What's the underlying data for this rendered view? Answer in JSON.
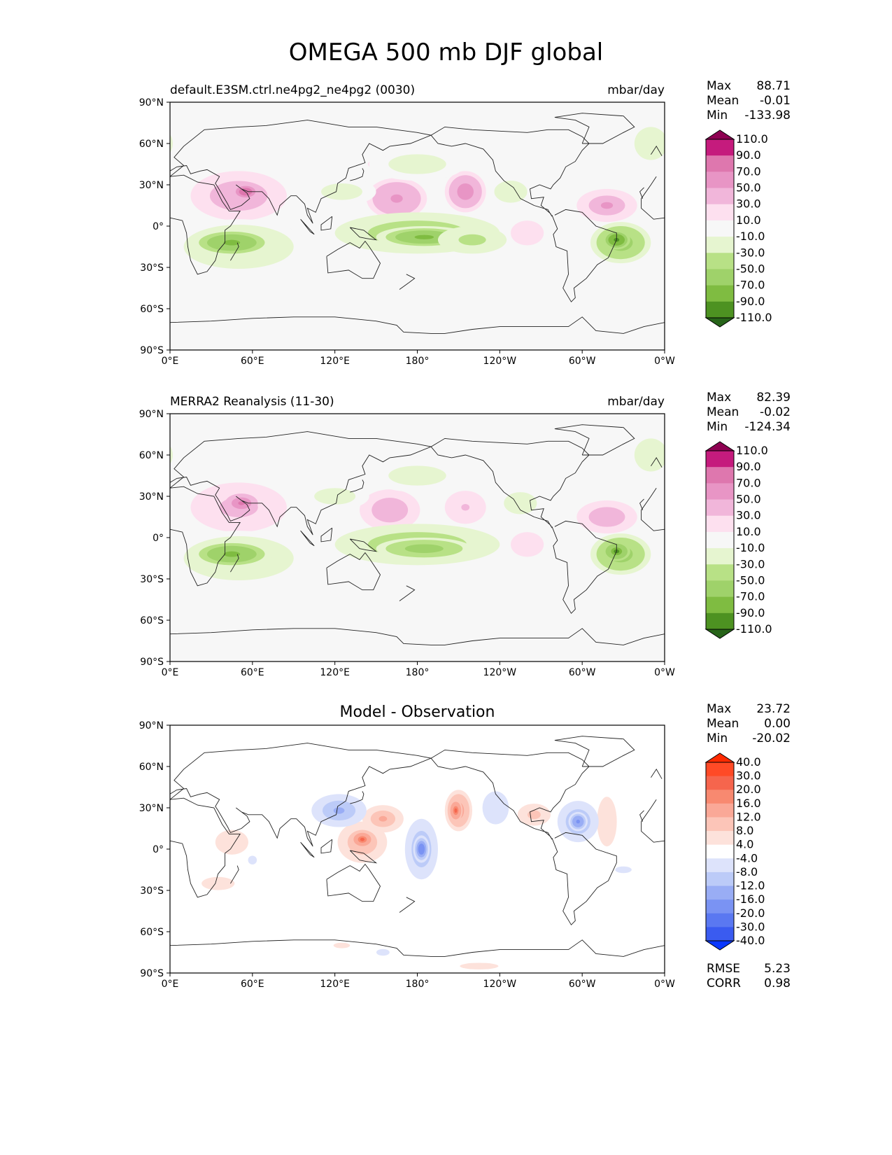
{
  "figure_title": "OMEGA 500 mb DJF global",
  "chart_data": [
    {
      "type": "contour-map",
      "left_title": "default.E3SM.ctrl.ne4pg2_ne4pg2 (0030)",
      "center_title": "",
      "right_title": "mbar/day",
      "x_ticks": [
        "0°E",
        "60°E",
        "120°E",
        "180°",
        "120°W",
        "60°W",
        "0°W"
      ],
      "y_ticks": [
        "90°N",
        "60°N",
        "30°N",
        "0°",
        "30°S",
        "60°S",
        "90°S"
      ],
      "stats": {
        "labels": [
          "Max",
          "Mean",
          "Min"
        ],
        "values": [
          "88.71",
          "-0.01",
          "-133.98"
        ]
      },
      "colorbar": {
        "labels": [
          "110.0",
          "90.0",
          "70.0",
          "50.0",
          "30.0",
          "10.0",
          "-10.0",
          "-30.0",
          "-50.0",
          "-70.0",
          "-90.0",
          "-110.0"
        ],
        "colors": [
          "#8e0152",
          "#c51b7d",
          "#de77ae",
          "#e895c5",
          "#f1b6da",
          "#fde0ef",
          "#f7f7f7",
          "#e6f5d0",
          "#b8e186",
          "#9fd26a",
          "#7fbc41",
          "#4d9221",
          "#276419"
        ]
      },
      "blobs": [
        {
          "lon": 50,
          "lat": 22,
          "rx": 35,
          "ry": 18,
          "v": 45
        },
        {
          "lon": 55,
          "lat": 25,
          "rx": 12,
          "ry": 7,
          "v": 85
        },
        {
          "lon": 165,
          "lat": 20,
          "rx": 22,
          "ry": 15,
          "v": 55
        },
        {
          "lon": 215,
          "lat": 25,
          "rx": 15,
          "ry": 15,
          "v": 60
        },
        {
          "lon": 318,
          "lat": 15,
          "rx": 22,
          "ry": 12,
          "v": 50
        },
        {
          "lon": 148,
          "lat": 45,
          "rx": 10,
          "ry": 6,
          "v": 12
        },
        {
          "lon": 260,
          "lat": -5,
          "rx": 20,
          "ry": 15,
          "v": 15
        },
        {
          "lon": 50,
          "lat": -15,
          "rx": 50,
          "ry": 20,
          "v": -25
        },
        {
          "lon": 45,
          "lat": -12,
          "rx": 30,
          "ry": 10,
          "v": -75
        },
        {
          "lon": 180,
          "lat": -5,
          "rx": 60,
          "ry": 15,
          "v": -45
        },
        {
          "lon": 185,
          "lat": -8,
          "rx": 35,
          "ry": 8,
          "v": -75
        },
        {
          "lon": 220,
          "lat": -10,
          "rx": 25,
          "ry": 10,
          "v": -40
        },
        {
          "lon": 328,
          "lat": -12,
          "rx": 22,
          "ry": 15,
          "v": -60
        },
        {
          "lon": 325,
          "lat": -10,
          "rx": 10,
          "ry": 7,
          "v": -105
        },
        {
          "lon": 180,
          "lat": 45,
          "rx": 35,
          "ry": 12,
          "v": -15
        },
        {
          "lon": 125,
          "lat": 25,
          "rx": 25,
          "ry": 10,
          "v": -18
        },
        {
          "lon": 248,
          "lat": 25,
          "rx": 15,
          "ry": 10,
          "v": -20
        },
        {
          "lon": 350,
          "lat": 60,
          "rx": 20,
          "ry": 20,
          "v": -18
        }
      ]
    },
    {
      "type": "contour-map",
      "left_title": "MERRA2 Reanalysis (11-30)",
      "center_title": "",
      "right_title": "mbar/day",
      "x_ticks": [
        "0°E",
        "60°E",
        "120°E",
        "180°",
        "120°W",
        "60°W",
        "0°W"
      ],
      "y_ticks": [
        "90°N",
        "60°N",
        "30°N",
        "0°",
        "30°S",
        "60°S",
        "90°S"
      ],
      "stats": {
        "labels": [
          "Max",
          "Mean",
          "Min"
        ],
        "values": [
          "82.39",
          "-0.02",
          "-124.34"
        ]
      },
      "colorbar": {
        "labels": [
          "110.0",
          "90.0",
          "70.0",
          "50.0",
          "30.0",
          "10.0",
          "-10.0",
          "-30.0",
          "-50.0",
          "-70.0",
          "-90.0",
          "-110.0"
        ],
        "colors": [
          "#8e0152",
          "#c51b7d",
          "#de77ae",
          "#e895c5",
          "#f1b6da",
          "#fde0ef",
          "#f7f7f7",
          "#e6f5d0",
          "#b8e186",
          "#9fd26a",
          "#7fbc41",
          "#4d9221",
          "#276419"
        ]
      },
      "blobs": [
        {
          "lon": 50,
          "lat": 22,
          "rx": 35,
          "ry": 18,
          "v": 40
        },
        {
          "lon": 52,
          "lat": 25,
          "rx": 12,
          "ry": 7,
          "v": 75
        },
        {
          "lon": 160,
          "lat": 20,
          "rx": 22,
          "ry": 15,
          "v": 45
        },
        {
          "lon": 215,
          "lat": 22,
          "rx": 15,
          "ry": 12,
          "v": 35
        },
        {
          "lon": 318,
          "lat": 15,
          "rx": 22,
          "ry": 12,
          "v": 45
        },
        {
          "lon": 260,
          "lat": -5,
          "rx": 20,
          "ry": 15,
          "v": 15
        },
        {
          "lon": 50,
          "lat": -15,
          "rx": 50,
          "ry": 20,
          "v": -25
        },
        {
          "lon": 45,
          "lat": -12,
          "rx": 30,
          "ry": 10,
          "v": -75
        },
        {
          "lon": 180,
          "lat": -5,
          "rx": 60,
          "ry": 15,
          "v": -45
        },
        {
          "lon": 185,
          "lat": -8,
          "rx": 35,
          "ry": 8,
          "v": -70
        },
        {
          "lon": 328,
          "lat": -12,
          "rx": 22,
          "ry": 15,
          "v": -60
        },
        {
          "lon": 325,
          "lat": -10,
          "rx": 10,
          "ry": 7,
          "v": -100
        },
        {
          "lon": 180,
          "lat": 45,
          "rx": 35,
          "ry": 12,
          "v": -15
        },
        {
          "lon": 120,
          "lat": 30,
          "rx": 25,
          "ry": 10,
          "v": -18
        },
        {
          "lon": 255,
          "lat": 25,
          "rx": 15,
          "ry": 10,
          "v": -20
        },
        {
          "lon": 350,
          "lat": 60,
          "rx": 20,
          "ry": 20,
          "v": -18
        }
      ]
    },
    {
      "type": "contour-map",
      "left_title": "",
      "center_title": "Model - Observation",
      "right_title": "",
      "x_ticks": [
        "0°E",
        "60°E",
        "120°E",
        "180°",
        "120°W",
        "60°W",
        "0°W"
      ],
      "y_ticks": [
        "90°N",
        "60°N",
        "30°N",
        "0°",
        "30°S",
        "60°S",
        "90°S"
      ],
      "stats": {
        "labels": [
          "Max",
          "Mean",
          "Min"
        ],
        "values": [
          "23.72",
          "0.00",
          "-20.02"
        ]
      },
      "extra_stats": {
        "labels": [
          "RMSE",
          "CORR"
        ],
        "values": [
          "5.23",
          "0.98"
        ]
      },
      "colorbar": {
        "labels": [
          "40.0",
          "30.0",
          "20.0",
          "16.0",
          "12.0",
          "8.0",
          "4.0",
          "-4.0",
          "-8.0",
          "-12.0",
          "-16.0",
          "-20.0",
          "-30.0",
          "-40.0"
        ],
        "colors": [
          "#ff2a00",
          "#ff4a26",
          "#f6654d",
          "#f88970",
          "#faa897",
          "#fcc5b8",
          "#fde2db",
          "#ffffff",
          "#dde3fb",
          "#bccbf8",
          "#99adf5",
          "#7a93f3",
          "#5a78f1",
          "#3a5bf0",
          "#0a38ff"
        ]
      },
      "blobs": [
        {
          "lon": 140,
          "lat": 5,
          "rx": 18,
          "ry": 15,
          "v": 14
        },
        {
          "lon": 140,
          "lat": 7,
          "rx": 8,
          "ry": 6,
          "v": 22
        },
        {
          "lon": 155,
          "lat": 22,
          "rx": 15,
          "ry": 10,
          "v": 14
        },
        {
          "lon": 210,
          "lat": 28,
          "rx": 10,
          "ry": 15,
          "v": 16
        },
        {
          "lon": 208,
          "lat": 28,
          "rx": 5,
          "ry": 8,
          "v": 22
        },
        {
          "lon": 265,
          "lat": 25,
          "rx": 12,
          "ry": 8,
          "v": 10
        },
        {
          "lon": 318,
          "lat": 20,
          "rx": 12,
          "ry": 30,
          "v": 6
        },
        {
          "lon": 45,
          "lat": 5,
          "rx": 20,
          "ry": 15,
          "v": 6
        },
        {
          "lon": 35,
          "lat": -25,
          "rx": 20,
          "ry": 8,
          "v": 6
        },
        {
          "lon": 125,
          "lat": -70,
          "rx": 15,
          "ry": 5,
          "v": 5
        },
        {
          "lon": 225,
          "lat": -85,
          "rx": 35,
          "ry": 6,
          "v": 5
        },
        {
          "lon": 183,
          "lat": 0,
          "rx": 12,
          "ry": 22,
          "v": -12
        },
        {
          "lon": 183,
          "lat": 0,
          "rx": 6,
          "ry": 10,
          "v": -20
        },
        {
          "lon": 123,
          "lat": 28,
          "rx": 20,
          "ry": 12,
          "v": -14
        },
        {
          "lon": 297,
          "lat": 20,
          "rx": 15,
          "ry": 15,
          "v": -12
        },
        {
          "lon": 297,
          "lat": 20,
          "rx": 7,
          "ry": 7,
          "v": -18
        },
        {
          "lon": 237,
          "lat": 30,
          "rx": 12,
          "ry": 15,
          "v": -8
        },
        {
          "lon": 155,
          "lat": -75,
          "rx": 12,
          "ry": 6,
          "v": -5
        },
        {
          "lon": 330,
          "lat": -15,
          "rx": 15,
          "ry": 6,
          "v": -5
        },
        {
          "lon": 60,
          "lat": -8,
          "rx": 8,
          "ry": 8,
          "v": -5
        }
      ]
    }
  ]
}
